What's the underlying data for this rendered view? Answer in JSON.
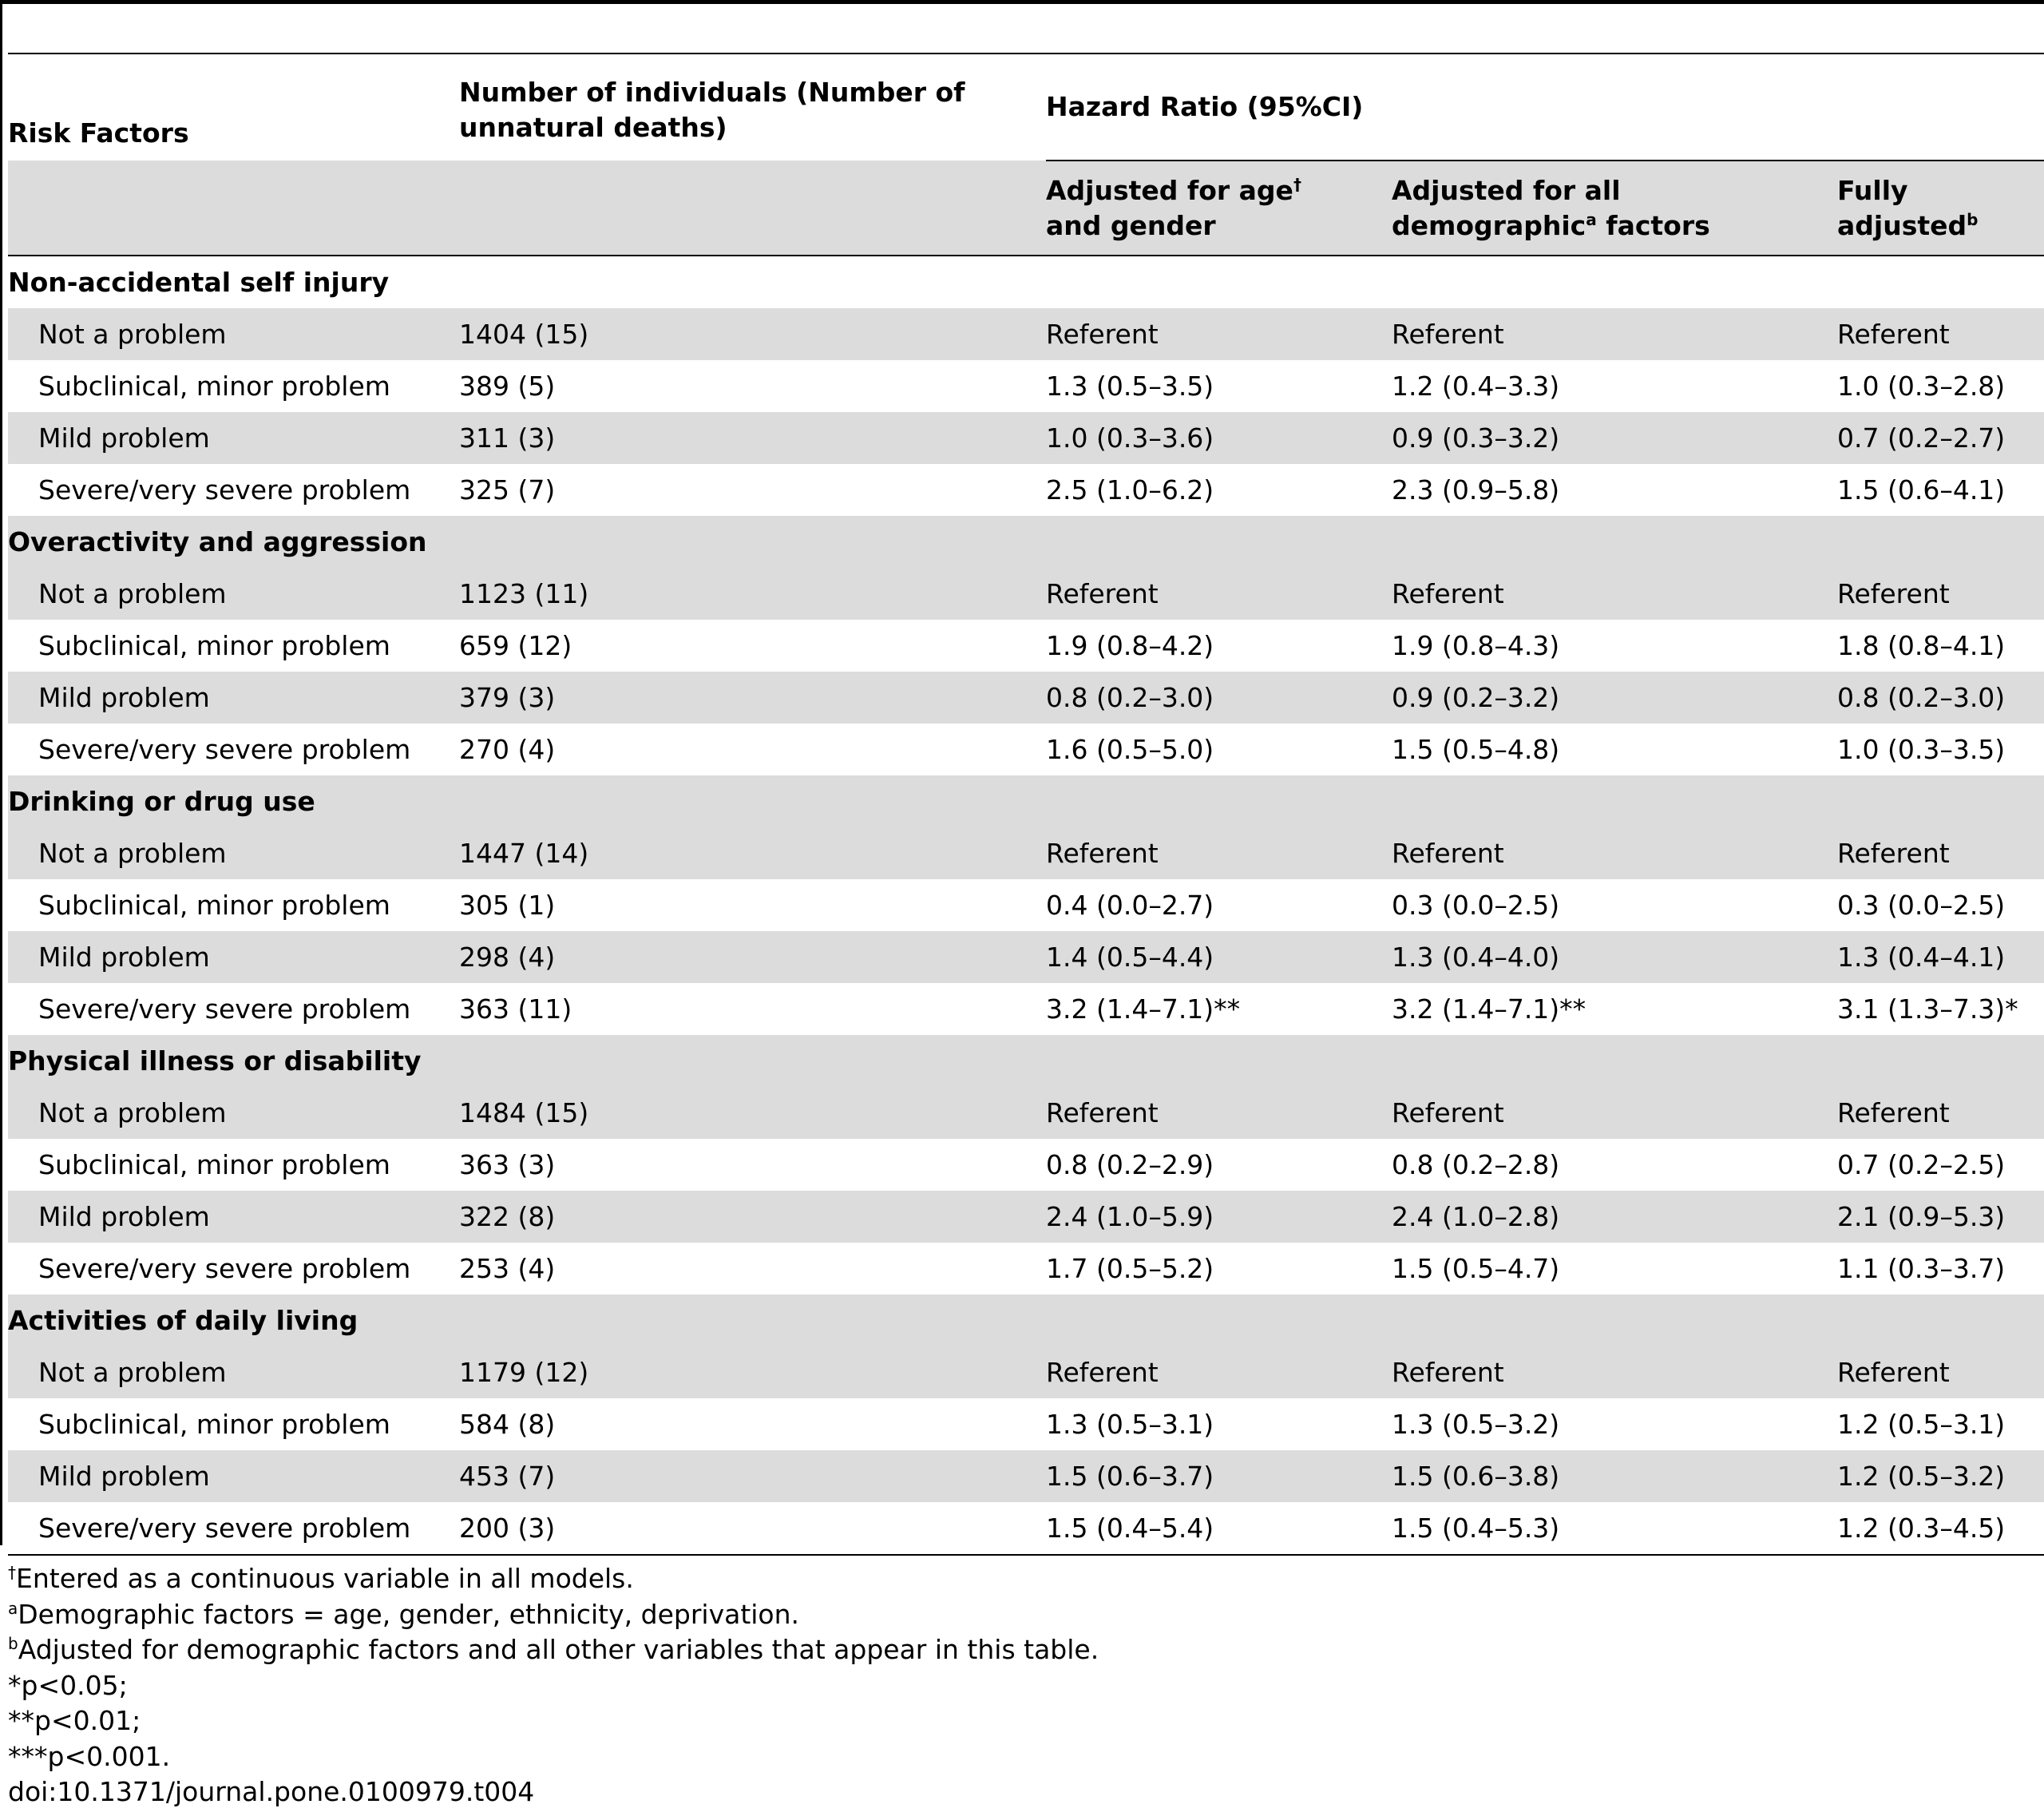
{
  "header": {
    "risk_factors": "Risk Factors",
    "number_individuals": "Number of individuals (Number of unnatural deaths)",
    "hazard_ratio": "Hazard Ratio (95%CI)",
    "adj_age_gender": "Adjusted for age",
    "adj_age_gender_sup": "†",
    "adj_age_gender_2": "and gender",
    "adj_demographic_1": "Adjusted for all",
    "adj_demographic_2": "demographic",
    "adj_demographic_sup": "a",
    "adj_demographic_3": " factors",
    "fully_1": "Fully",
    "fully_2": "adjusted",
    "fully_sup": "b"
  },
  "groups": [
    {
      "category": "Non-accidental self injury",
      "rows": [
        [
          "Not a problem",
          "1404 (15)",
          "Referent",
          "Referent",
          "Referent"
        ],
        [
          "Subclinical, minor problem",
          "389 (5)",
          "1.3 (0.5–3.5)",
          "1.2 (0.4–3.3)",
          "1.0 (0.3–2.8)"
        ],
        [
          "Mild problem",
          "311 (3)",
          "1.0 (0.3–3.6)",
          "0.9 (0.3–3.2)",
          "0.7 (0.2–2.7)"
        ],
        [
          "Severe/very severe problem",
          "325 (7)",
          "2.5 (1.0–6.2)",
          "2.3 (0.9–5.8)",
          "1.5 (0.6–4.1)"
        ]
      ]
    },
    {
      "category": "Overactivity and aggression",
      "rows": [
        [
          "Not a problem",
          "1123 (11)",
          "Referent",
          "Referent",
          "Referent"
        ],
        [
          "Subclinical, minor problem",
          "659 (12)",
          "1.9 (0.8–4.2)",
          "1.9 (0.8–4.3)",
          "1.8 (0.8–4.1)"
        ],
        [
          "Mild problem",
          "379 (3)",
          "0.8 (0.2–3.0)",
          "0.9 (0.2–3.2)",
          "0.8 (0.2–3.0)"
        ],
        [
          "Severe/very severe problem",
          "270 (4)",
          "1.6 (0.5–5.0)",
          "1.5 (0.5–4.8)",
          "1.0 (0.3–3.5)"
        ]
      ]
    },
    {
      "category": "Drinking or drug use",
      "rows": [
        [
          "Not a problem",
          "1447 (14)",
          "Referent",
          "Referent",
          "Referent"
        ],
        [
          "Subclinical, minor problem",
          "305 (1)",
          "0.4 (0.0–2.7)",
          "0.3 (0.0–2.5)",
          "0.3 (0.0–2.5)"
        ],
        [
          "Mild problem",
          "298 (4)",
          "1.4 (0.5–4.4)",
          "1.3 (0.4–4.0)",
          "1.3 (0.4–4.1)"
        ],
        [
          "Severe/very severe problem",
          "363 (11)",
          "3.2 (1.4–7.1)**",
          "3.2 (1.4–7.1)**",
          "3.1 (1.3–7.3)*"
        ]
      ]
    },
    {
      "category": "Physical illness or disability",
      "rows": [
        [
          "Not a problem",
          "1484 (15)",
          "Referent",
          "Referent",
          "Referent"
        ],
        [
          "Subclinical, minor problem",
          "363 (3)",
          "0.8 (0.2–2.9)",
          "0.8 (0.2–2.8)",
          "0.7 (0.2–2.5)"
        ],
        [
          "Mild problem",
          "322 (8)",
          "2.4 (1.0–5.9)",
          "2.4 (1.0–2.8)",
          "2.1 (0.9–5.3)"
        ],
        [
          "Severe/very severe problem",
          "253 (4)",
          "1.7 (0.5–5.2)",
          "1.5 (0.5–4.7)",
          "1.1 (0.3–3.7)"
        ]
      ]
    },
    {
      "category": "Activities of daily living",
      "rows": [
        [
          "Not a problem",
          "1179 (12)",
          "Referent",
          "Referent",
          "Referent"
        ],
        [
          "Subclinical, minor problem",
          "584 (8)",
          "1.3 (0.5–3.1)",
          "1.3 (0.5–3.2)",
          "1.2 (0.5–3.1)"
        ],
        [
          "Mild problem",
          "453 (7)",
          "1.5 (0.6–3.7)",
          "1.5 (0.6–3.8)",
          "1.2 (0.5–3.2)"
        ],
        [
          "Severe/very severe problem",
          "200 (3)",
          "1.5 (0.4–5.4)",
          "1.5 (0.4–5.3)",
          "1.2 (0.3–4.5)"
        ]
      ]
    }
  ],
  "footnotes": [
    {
      "mark": "†",
      "text": "Entered as a continuous variable in all models."
    },
    {
      "mark": "a",
      "text": "Demographic factors = age, gender, ethnicity, deprivation."
    },
    {
      "mark": "b",
      "text": "Adjusted for demographic factors and all other variables that appear in this table."
    },
    {
      "mark": "",
      "text": "*p<0.05;"
    },
    {
      "mark": "",
      "text": "**p<0.01;"
    },
    {
      "mark": "",
      "text": "***p<0.001."
    },
    {
      "mark": "",
      "text": "doi:10.1371/journal.pone.0100979.t004"
    }
  ]
}
